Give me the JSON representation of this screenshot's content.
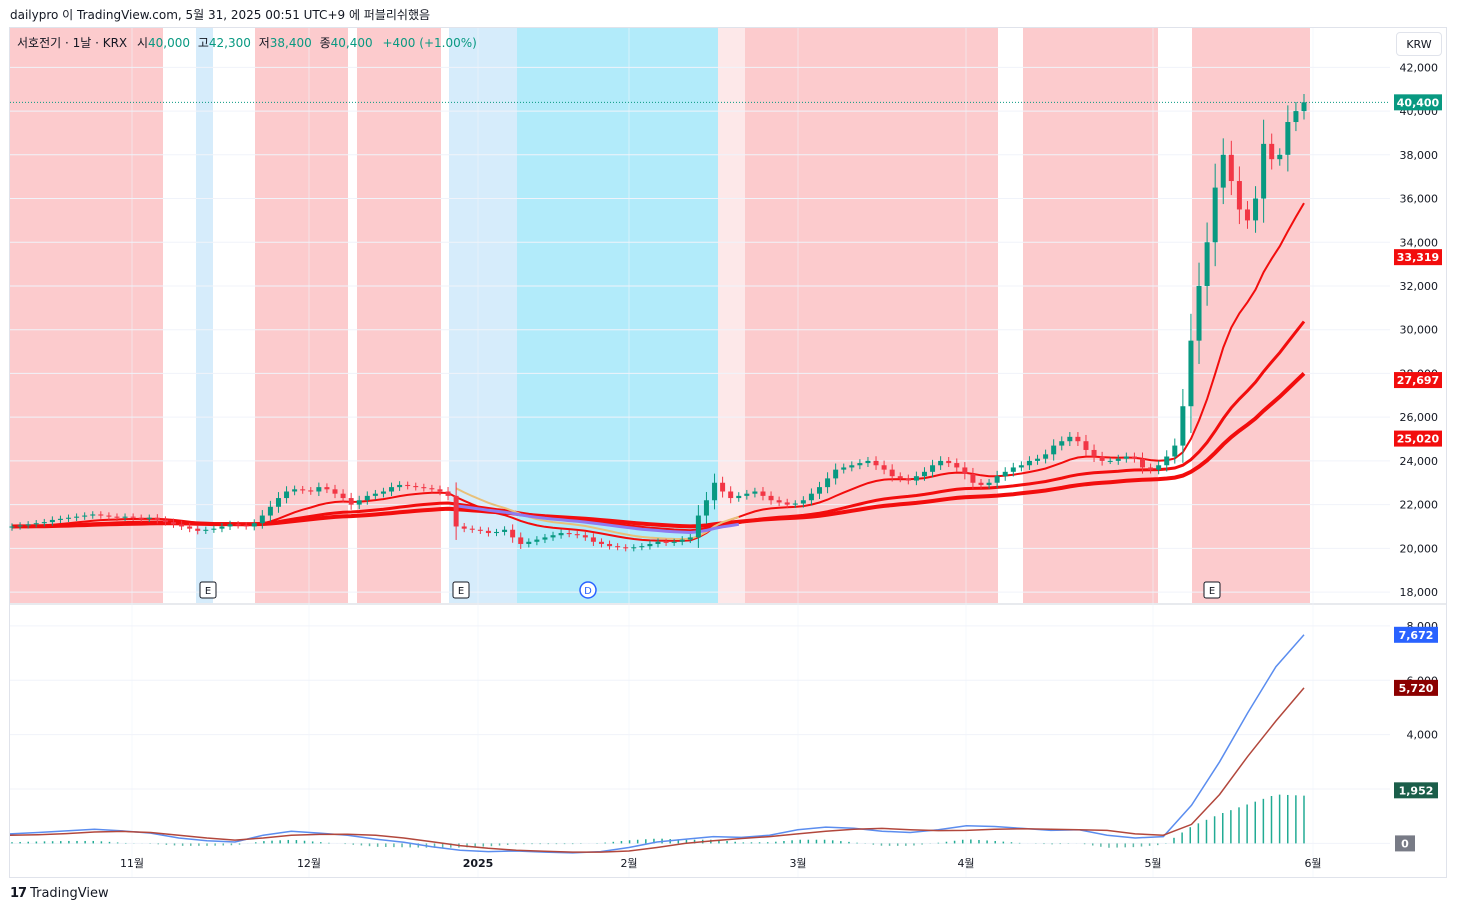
{
  "header": {
    "text": "dailypro 이 TradingView.com, 5월 31, 2025 00:51 UTC+9 에 퍼블리쉬했음"
  },
  "legend": {
    "symbol": "서호전기 · 1날 · KRX",
    "open_label": "시",
    "open": "40,000",
    "high_label": "고",
    "high": "42,300",
    "low_label": "저",
    "low": "38,400",
    "close_label": "종",
    "close": "40,400",
    "change": "+400 (+1.00%)"
  },
  "currency_button": "KRW",
  "footer": {
    "logo_mark": "17",
    "logo_text": "TradingView"
  },
  "colors": {
    "up": "#089981",
    "down": "#f23645",
    "bg_red": "#fccbcd",
    "bg_blue_light": "#d6ecfb",
    "bg_blue": "#b2ebfa",
    "ma_fast": "#f20d0d",
    "macd": "#5b8def",
    "signal": "#b2473c",
    "hist": "#22ab94"
  },
  "chart_data": [
    {
      "type": "candlestick",
      "title": "서호전기 · 1날 · KRX",
      "ylim": [
        17500,
        43800
      ],
      "y_ticks": [
        "18,000",
        "20,000",
        "22,000",
        "24,000",
        "26,000",
        "28,000",
        "30,000",
        "32,000",
        "34,000",
        "36,000",
        "38,000",
        "40,000",
        "42,000"
      ],
      "x_ticks": [
        "11월",
        "12월",
        "2025",
        "2월",
        "3월",
        "4월",
        "5월",
        "6월"
      ],
      "price_labels": [
        {
          "value": "40,400",
          "color": "#089981"
        },
        {
          "value": "33,319",
          "color": "#f20d0d"
        },
        {
          "value": "27,697",
          "color": "#f20d0d"
        },
        {
          "value": "25,020",
          "color": "#f20d0d"
        }
      ],
      "event_markers": [
        "E",
        "E",
        "D",
        "E"
      ],
      "series": [
        {
          "name": "",
          "type": "ohlc_close_path",
          "values": [
            21000,
            21050,
            21100,
            21150,
            21200,
            21300,
            21350,
            21400,
            21450,
            21500,
            21550,
            21500,
            21450,
            21400,
            21450,
            21400,
            21350,
            21400,
            21300,
            21200,
            21100,
            21000,
            20900,
            20800,
            20850,
            20900,
            21000,
            21100,
            21050,
            21000,
            21150,
            21500,
            21900,
            22300,
            22600,
            22700,
            22650,
            22600,
            22800,
            22700,
            22500,
            22300,
            22000,
            22200,
            22400,
            22500,
            22600,
            22800,
            22900,
            22850,
            22800,
            22750,
            22700,
            22600,
            22400,
            21000,
            20900,
            20850,
            20800,
            20700,
            20750,
            20850,
            20500,
            20200,
            20300,
            20400,
            20500,
            20600,
            20700,
            20650,
            20600,
            20500,
            20300,
            20200,
            20100,
            20050,
            20000,
            20050,
            20100,
            20200,
            20300,
            20250,
            20300,
            20400,
            20500,
            21500,
            22200,
            23000,
            22600,
            22300,
            22400,
            22500,
            22600,
            22400,
            22200,
            22100,
            22000,
            22050,
            22200,
            22500,
            22800,
            23200,
            23600,
            23700,
            23800,
            23900,
            24000,
            23800,
            23600,
            23300,
            23200,
            23100,
            23300,
            23500,
            23800,
            24000,
            23900,
            23700,
            23400,
            23000,
            22900,
            23000,
            23300,
            23500,
            23700,
            23800,
            24000,
            24100,
            24300,
            24700,
            24900,
            25100,
            24900,
            24500,
            24200,
            24000,
            24000,
            24100,
            24200,
            24100,
            23700,
            23600,
            23800,
            24200,
            24700,
            26500,
            29500,
            32000,
            34000,
            36500,
            38000,
            36800,
            35500,
            35000,
            36000,
            38500,
            37800,
            38000,
            39500,
            40000,
            40400
          ]
        },
        {
          "name": "",
          "type": "ma",
          "color": "#f20d0d"
        },
        {
          "name": "",
          "type": "ma",
          "color": "#f20d0d"
        },
        {
          "name": "",
          "type": "ma",
          "color": "#f20d0d"
        }
      ],
      "shading": [
        "red",
        "white",
        "blue_light",
        "white",
        "red",
        "white",
        "red",
        "white",
        "blue_light",
        "blue",
        "pink",
        "red",
        "white",
        "red",
        "white",
        "red"
      ]
    },
    {
      "type": "line",
      "title": "",
      "ylim": [
        -500,
        8400
      ],
      "y_ticks": [
        "0",
        "2,000",
        "4,000",
        "6,000",
        "8,000"
      ],
      "price_labels": [
        {
          "value": "7,672",
          "color": "#2962ff"
        },
        {
          "value": "5,720",
          "color": "#8b0000"
        },
        {
          "value": "1,952",
          "color": "#1b5e4a"
        },
        {
          "value": "0",
          "color": "#787b86"
        }
      ],
      "series": [
        {
          "name": "",
          "color": "#5b8def",
          "values": [
            350,
            400,
            460,
            520,
            460,
            380,
            200,
            100,
            50,
            300,
            450,
            380,
            300,
            160,
            40,
            -120,
            -250,
            -300,
            -280,
            -320,
            -350,
            -300,
            -150,
            50,
            150,
            250,
            220,
            300,
            500,
            600,
            560,
            450,
            400,
            500,
            650,
            620,
            550,
            480,
            500,
            300,
            200,
            250,
            1400,
            3000,
            4800,
            6500,
            7672
          ]
        },
        {
          "name": "",
          "color": "#b2473c",
          "values": [
            300,
            320,
            360,
            420,
            440,
            400,
            300,
            200,
            120,
            200,
            300,
            330,
            340,
            300,
            200,
            60,
            -80,
            -180,
            -250,
            -290,
            -320,
            -320,
            -280,
            -150,
            0,
            100,
            180,
            250,
            350,
            450,
            520,
            550,
            500,
            470,
            480,
            520,
            540,
            520,
            500,
            480,
            350,
            300,
            700,
            1800,
            3200,
            4500,
            5720
          ]
        },
        {
          "name": "",
          "color": "#22ab94",
          "type": "histogram"
        }
      ]
    }
  ]
}
